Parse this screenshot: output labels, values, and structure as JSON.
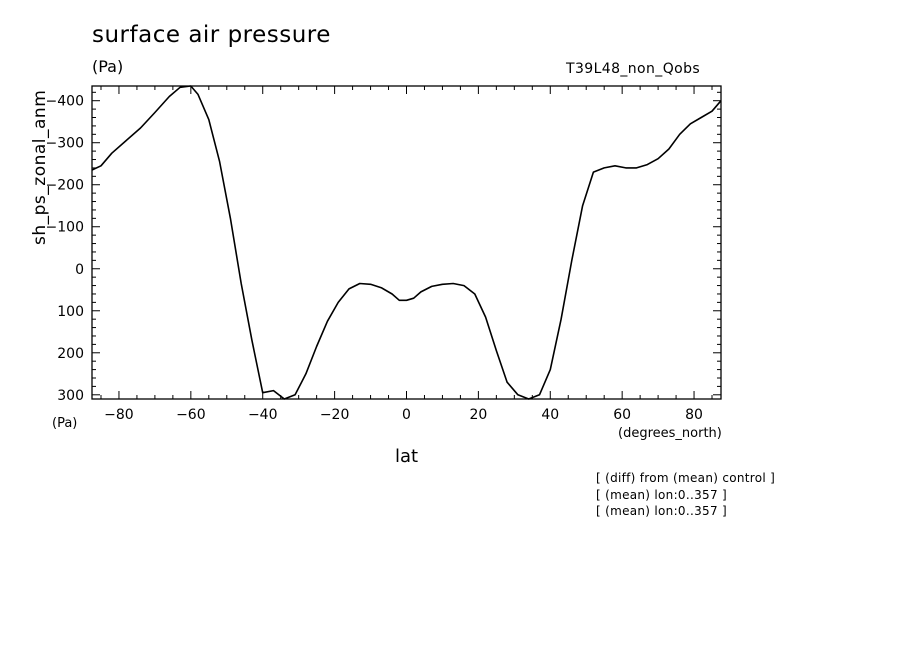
{
  "title": "surface air pressure",
  "units_top": "(Pa)",
  "run_name": "T39L48_non_Qobs",
  "notes": [
    "[ (diff) from (mean) control ]",
    "[ (mean) lon:0..357 ]",
    "[ (mean) lon:0..357 ]"
  ],
  "chart_data": {
    "type": "line",
    "title": "surface air pressure",
    "xlabel": "lat",
    "xunit": "(degrees_north)",
    "ylabel": "sh_ps_zonal_anm",
    "yunit": "(Pa)",
    "xlim": [
      -87.5,
      87.5
    ],
    "ylim": [
      -435,
      310
    ],
    "y_inverted": true,
    "grid": false,
    "x_ticks": [
      -80,
      -60,
      -40,
      -20,
      0,
      20,
      40,
      60,
      80
    ],
    "y_ticks": [
      -400,
      -300,
      -200,
      -100,
      0,
      100,
      200,
      300
    ],
    "series": [
      {
        "x": [
          -87.5,
          -85,
          -82,
          -78,
          -74,
          -70,
          -66,
          -63,
          -60,
          -58,
          -55,
          -52,
          -49,
          -46,
          -43,
          -40,
          -37,
          -34,
          -31,
          -28,
          -25,
          -22,
          -19,
          -16,
          -13,
          -10,
          -7,
          -4,
          -2,
          0,
          2,
          4,
          7,
          10,
          13,
          16,
          19,
          22,
          25,
          28,
          31,
          34,
          37,
          40,
          43,
          46,
          49,
          52,
          55,
          58,
          61,
          64,
          67,
          70,
          73,
          76,
          79,
          82,
          85,
          87.5
        ],
        "y": [
          -235,
          -245,
          -275,
          -305,
          -335,
          -372,
          -410,
          -432,
          -435,
          -415,
          -355,
          -255,
          -120,
          35,
          170,
          295,
          290,
          310,
          300,
          250,
          185,
          125,
          80,
          48,
          35,
          37,
          45,
          60,
          75,
          75,
          70,
          55,
          42,
          37,
          35,
          40,
          60,
          115,
          195,
          270,
          300,
          310,
          300,
          240,
          120,
          -20,
          -150,
          -230,
          -240,
          -245,
          -240,
          -240,
          -248,
          -262,
          -285,
          -320,
          -345,
          -360,
          -375,
          -400
        ]
      }
    ]
  }
}
